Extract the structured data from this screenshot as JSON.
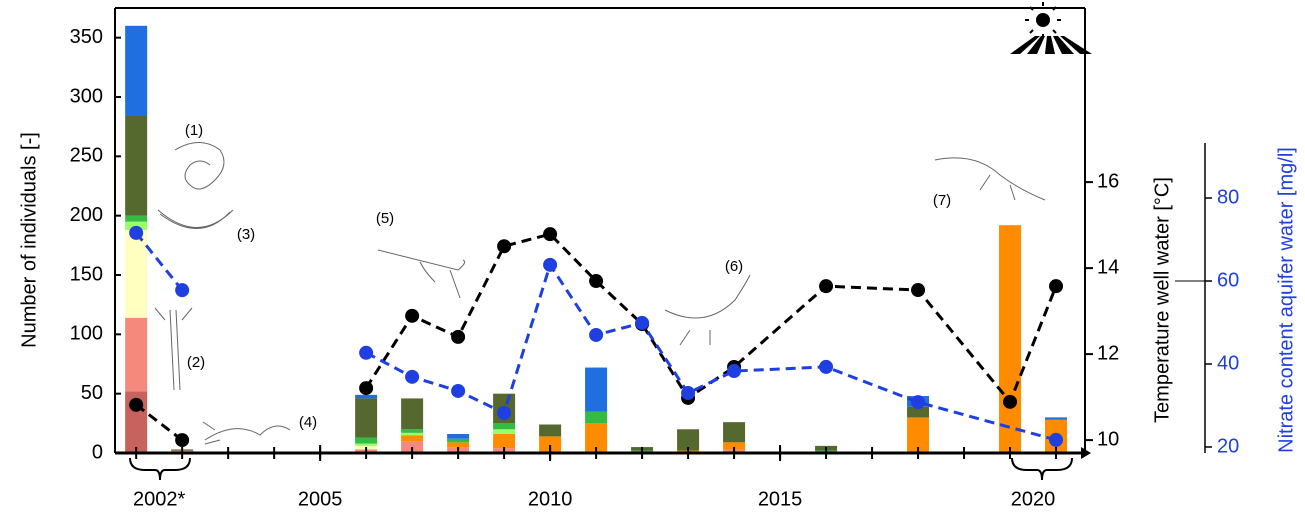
{
  "chart_data": {
    "type": "bar",
    "ylabel": "Number of individuals [-]",
    "y2label": "Temperature well water [°C]",
    "y3label": "Nitrate content aquifer water [mg/l]",
    "annotations": [
      "(1)",
      "(2)",
      "(3)",
      "(4)",
      "(5)",
      "(6)",
      "(7)"
    ],
    "x": [
      2001,
      2002,
      2006,
      2007,
      2008,
      2009,
      2010,
      2011,
      2012,
      2013,
      2014,
      2016,
      2018,
      2020,
      2021
    ],
    "xlim": [
      2000.54,
      2021.63
    ],
    "xticks": [
      {
        "value": 2001.5,
        "label": "2002*"
      },
      2005,
      2010,
      2015,
      {
        "value": 2020.5,
        "label": "2020"
      }
    ],
    "ylim": [
      0,
      375
    ],
    "yticks": [
      0,
      50,
      100,
      150,
      200,
      250,
      300,
      350
    ],
    "y2lim": [
      9.7,
      20.05
    ],
    "y2ticks": [
      10,
      12,
      14,
      16
    ],
    "y3lim": [
      18.55,
      125.8
    ],
    "y3ticks": [
      20,
      40,
      60,
      80
    ],
    "y3color": "#1f3fe0",
    "series": [
      {
        "color": "#c8625e",
        "values": [
          52,
          0,
          0,
          0,
          0,
          0,
          0,
          0,
          0,
          0,
          0,
          0,
          0,
          0,
          0
        ]
      },
      {
        "color": "#f4897c",
        "values": [
          62,
          2,
          3,
          10,
          5,
          4,
          0,
          0,
          0,
          0,
          3,
          0,
          0,
          0,
          0
        ]
      },
      {
        "color": "#ff8c00",
        "values": [
          0,
          0,
          0,
          5,
          4,
          12,
          14,
          25,
          0,
          2,
          6,
          0,
          30,
          192,
          28
        ]
      },
      {
        "color": "#ffffc0",
        "values": [
          74,
          0,
          3,
          0,
          0,
          0,
          0,
          0,
          0,
          0,
          0,
          0,
          0,
          0,
          0
        ]
      },
      {
        "color": "#99ff66",
        "values": [
          7,
          0,
          2,
          2,
          0,
          4,
          0,
          0,
          0,
          0,
          0,
          0,
          0,
          0,
          0
        ]
      },
      {
        "color": "#33bb44",
        "values": [
          5,
          0,
          5,
          3,
          3,
          5,
          0,
          10,
          2,
          0,
          0,
          2,
          0,
          0,
          0
        ]
      },
      {
        "color": "#55692f",
        "values": [
          84,
          1,
          33,
          26,
          0,
          25,
          10,
          0,
          3,
          18,
          17,
          4,
          9,
          0,
          0
        ]
      },
      {
        "color": "#1f6fe0",
        "values": [
          76,
          0,
          3,
          0,
          4,
          0,
          0,
          37,
          0,
          0,
          0,
          0,
          9,
          0,
          2
        ]
      }
    ],
    "lines": [
      {
        "type": "line",
        "axis": "y2",
        "color": "#000000",
        "x": [
          2001,
          2002,
          2006,
          2007,
          2008,
          2009,
          2010,
          2011,
          2012,
          2013,
          2014,
          2016,
          2018,
          2020,
          2021
        ],
        "values": [
          10.82,
          10.0,
          11.21,
          12.89,
          12.4,
          14.51,
          14.79,
          13.7,
          12.7,
          10.98,
          11.7,
          13.58,
          13.49,
          10.89,
          13.58
        ]
      },
      {
        "type": "line",
        "axis": "y3",
        "color": "#1f3fe0",
        "x": [
          2001,
          2002,
          2006,
          2007,
          2008,
          2009,
          2010,
          2011,
          2012,
          2013,
          2014,
          2016,
          2018,
          2020,
          2021
        ],
        "values": [
          71.6,
          57.8,
          42.7,
          36.9,
          33.5,
          28.2,
          63.9,
          47.0,
          49.9,
          33.0,
          38.3,
          39.3,
          30.8,
          null,
          21.7
        ]
      }
    ]
  }
}
